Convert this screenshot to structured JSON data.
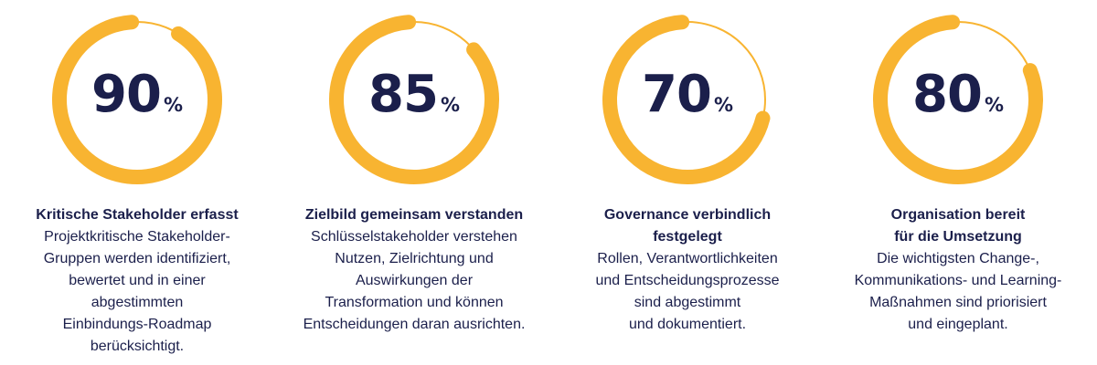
{
  "chart_data": {
    "type": "donut",
    "accent_color": "#F8B431",
    "track_color": "#F8B431",
    "text_color": "#1B1F4B",
    "items": [
      {
        "value": 90,
        "unit": "%",
        "heading": "Kritische Stakeholder erfasst",
        "description": "Projektkritische Stakeholder-\nGruppen werden identifiziert,\nbewertet und in einer\nabgestimmten\nEinbindungs-Roadmap\nberücksichtigt."
      },
      {
        "value": 85,
        "unit": "%",
        "heading": "Zielbild gemeinsam verstanden",
        "description": "Schlüsselstakeholder verstehen\nNutzen, Zielrichtung und\nAuswirkungen der\nTransformation und können\nEntscheidungen daran ausrichten."
      },
      {
        "value": 70,
        "unit": "%",
        "heading": "Governance verbindlich\nfestgelegt",
        "description": "Rollen, Verantwortlichkeiten\nund Entscheidungsprozesse\nsind abgestimmt\nund dokumentiert."
      },
      {
        "value": 80,
        "unit": "%",
        "heading": "Organisation bereit\nfür die Umsetzung",
        "description": "Die wichtigsten Change-,\nKommunikations- und Learning-\nMaßnahmen sind priorisiert\nund eingeplant."
      }
    ]
  }
}
